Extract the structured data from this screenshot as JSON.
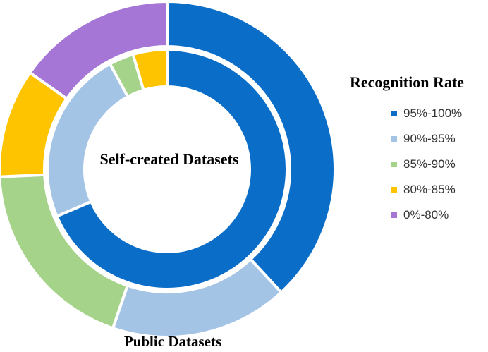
{
  "chart_data": {
    "type": "pie",
    "variant": "nested-donut",
    "legend_title": "Recognition Rate",
    "legend_position": "right",
    "categories": [
      "95%-100%",
      "90%-95%",
      "85%-90%",
      "80%-85%",
      "0%-80%"
    ],
    "colors": [
      "#0a6ec8",
      "#a4c4e6",
      "#a6d38a",
      "#ffc400",
      "#a676d6"
    ],
    "series": [
      {
        "name": "Self-created Datasets",
        "ring": "inner",
        "values": [
          68.6,
          23.5,
          3.3,
          4.6,
          0
        ]
      },
      {
        "name": "Public Datasets",
        "ring": "outer",
        "values": [
          40,
          18,
          20,
          11,
          16
        ]
      }
    ]
  }
}
